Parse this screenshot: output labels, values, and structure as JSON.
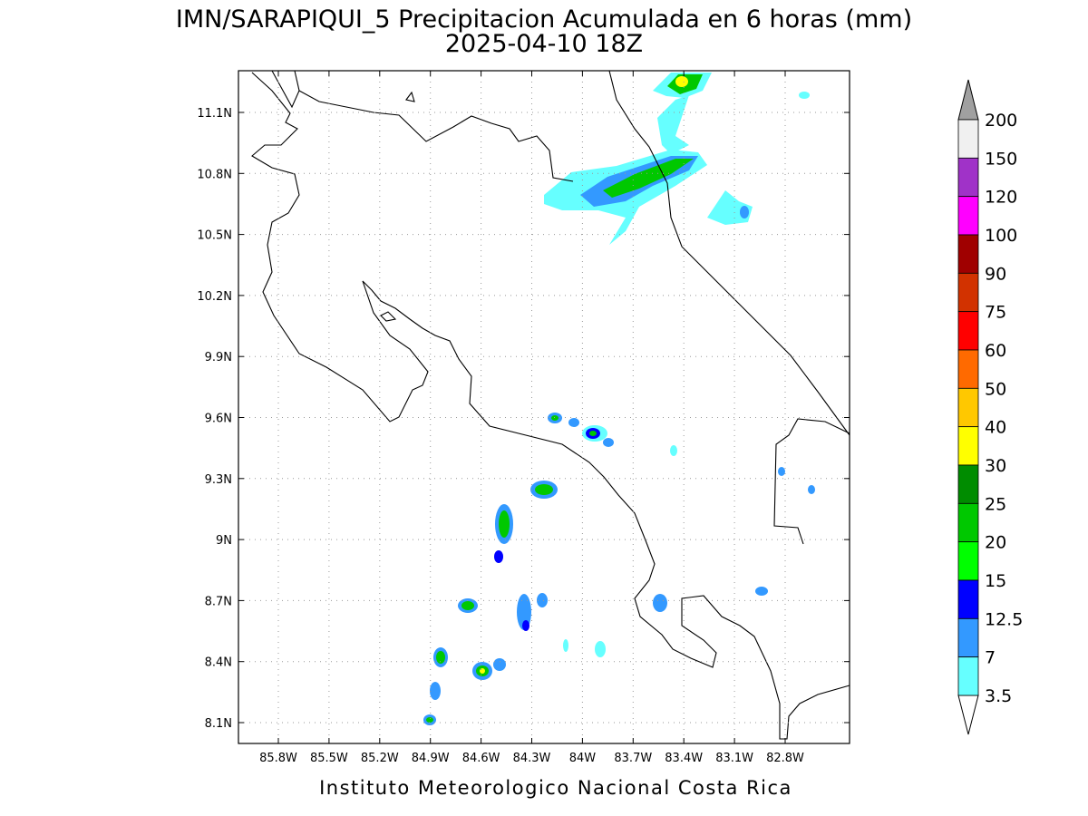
{
  "header": {
    "title": "IMN/SARAPIQUI_5 Precipitacion Acumulada en 6 horas (mm)",
    "subtitle": "2025-04-10 18Z"
  },
  "map": {
    "lon_ticks": [
      "85.8W",
      "85.5W",
      "85.2W",
      "84.9W",
      "84.6W",
      "84.3W",
      "84W",
      "83.7W",
      "83.4W",
      "83.1W",
      "82.8W"
    ],
    "lat_ticks": [
      "11.1N",
      "10.8N",
      "10.5N",
      "10.2N",
      "9.9N",
      "9.6N",
      "9.3N",
      "9N",
      "8.7N",
      "8.4N",
      "8.1N"
    ]
  },
  "legend": {
    "levels": [
      "200",
      "150",
      "120",
      "100",
      "90",
      "75",
      "60",
      "50",
      "40",
      "30",
      "25",
      "20",
      "15",
      "12.5",
      "7",
      "3.5"
    ],
    "colors": [
      "#f0f0f0",
      "#a032c8",
      "#ff00ff",
      "#a00000",
      "#d23200",
      "#ff0000",
      "#ff6a00",
      "#ffc800",
      "#ffff00",
      "#008c00",
      "#00c800",
      "#00ff00",
      "#0000ff",
      "#3399ff",
      "#66ffff"
    ],
    "over_color": "#a0a0a0",
    "under_color": "#ffffff"
  },
  "footer": "Instituto Meteorologico Nacional Costa Rica"
}
